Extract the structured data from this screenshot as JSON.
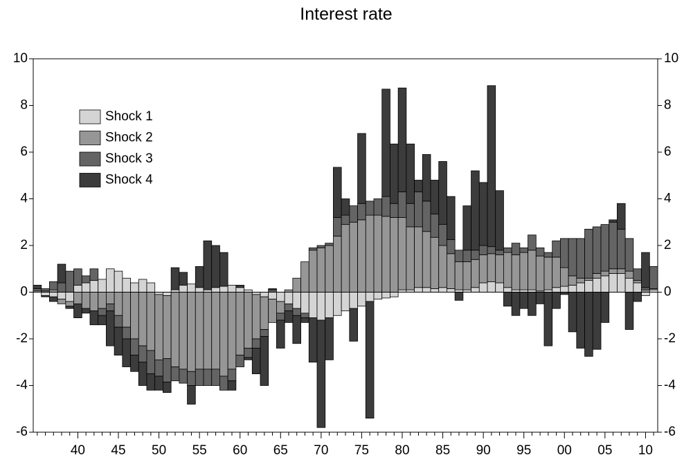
{
  "chart_data": {
    "type": "stacked_bar",
    "title": "Interest rate",
    "categories": [
      null,
      null,
      null,
      null,
      null,
      "40",
      null,
      null,
      null,
      null,
      "45",
      null,
      null,
      null,
      null,
      "50",
      null,
      null,
      null,
      null,
      "55",
      null,
      null,
      null,
      null,
      "60",
      null,
      null,
      null,
      null,
      "65",
      null,
      null,
      null,
      null,
      "70",
      null,
      null,
      null,
      null,
      "75",
      null,
      null,
      null,
      null,
      "80",
      null,
      null,
      null,
      null,
      "85",
      null,
      null,
      null,
      null,
      "90",
      null,
      null,
      null,
      null,
      "95",
      null,
      null,
      null,
      null,
      "00",
      null,
      null,
      null,
      null,
      "05",
      null,
      null,
      null,
      null,
      "10",
      null
    ],
    "series": [
      {
        "name": "Shock 1",
        "color": "#d4d4d4",
        "values": [
          0.05,
          -0.15,
          -0.2,
          -0.3,
          -0.4,
          0.3,
          0.4,
          0.5,
          0.55,
          1.0,
          0.9,
          0.6,
          0.4,
          0.55,
          0.4,
          -0.1,
          -0.15,
          0.1,
          0.3,
          0.35,
          0.2,
          0.1,
          0.2,
          0.25,
          0.3,
          0.2,
          0.1,
          -0.1,
          -0.2,
          -0.3,
          -0.4,
          -0.5,
          -0.7,
          -0.9,
          -1.1,
          -1.2,
          -1.1,
          -1.0,
          -0.8,
          -0.7,
          -0.6,
          -0.4,
          -0.3,
          -0.25,
          -0.2,
          0.1,
          0.1,
          0.2,
          0.2,
          0.15,
          0.2,
          0.15,
          0.1,
          0.1,
          0.2,
          0.4,
          0.45,
          0.4,
          0.2,
          0.1,
          0.1,
          0.1,
          0.05,
          0.1,
          0.2,
          0.25,
          0.3,
          0.4,
          0.5,
          0.6,
          0.7,
          0.8,
          0.8,
          0.6,
          0.4,
          -0.15,
          0.1
        ]
      },
      {
        "name": "Shock 2",
        "color": "#969696",
        "values": [
          0,
          0.05,
          0.1,
          -0.2,
          -0.2,
          -0.5,
          -0.7,
          -0.8,
          -0.7,
          -0.5,
          -1.0,
          -1.5,
          -2.0,
          -2.3,
          -2.5,
          -2.8,
          -2.7,
          -3.2,
          -3.3,
          -3.4,
          -3.3,
          -3.3,
          -3.3,
          -3.6,
          -3.3,
          -2.7,
          -2.4,
          -1.9,
          -1.4,
          -1.0,
          -0.5,
          0.1,
          0.6,
          1.3,
          1.8,
          1.9,
          2.0,
          2.4,
          2.9,
          3.0,
          3.1,
          3.3,
          3.3,
          3.25,
          3.2,
          3.1,
          2.7,
          2.6,
          2.4,
          2.2,
          1.8,
          1.5,
          1.2,
          1.2,
          1.2,
          1.2,
          1.2,
          1.2,
          1.5,
          1.5,
          1.6,
          1.7,
          1.5,
          1.4,
          1.3,
          0.8,
          0.4,
          0.2,
          0.1,
          0.2,
          0.2,
          0.2,
          0.2,
          0.3,
          0.1,
          0.1,
          0.05
        ]
      },
      {
        "name": "Shock 3",
        "color": "#646464",
        "values": [
          0.1,
          0.1,
          0.35,
          0.4,
          0.9,
          0.7,
          0.3,
          0.5,
          -0.3,
          -0.3,
          -0.5,
          -0.5,
          -0.7,
          -0.7,
          -1.0,
          -0.7,
          -1.0,
          -0.6,
          -0.6,
          -0.6,
          -0.7,
          -0.7,
          -0.7,
          -0.6,
          -0.5,
          -0.5,
          -0.4,
          -0.4,
          -0.3,
          0.1,
          -0.3,
          -0.3,
          -0.3,
          -0.2,
          0.1,
          0.1,
          0.1,
          0.8,
          0.4,
          0.7,
          0.7,
          0.6,
          0.7,
          0.85,
          0.6,
          1.1,
          1.0,
          1.5,
          1.3,
          1.0,
          0.9,
          0.6,
          0.5,
          0.5,
          0.4,
          0.4,
          0.3,
          0.2,
          0.2,
          0.5,
          0.2,
          0.65,
          0.35,
          0.2,
          0.7,
          1.25,
          1.6,
          1.7,
          2.1,
          2.0,
          2.0,
          2.0,
          1.7,
          1.4,
          0.5,
          0.1,
          0.95
        ]
      },
      {
        "name": "Shock 4",
        "color": "#3c3c3c",
        "values": [
          0.15,
          -0.05,
          -0.2,
          0.8,
          -0.1,
          -0.6,
          -0.2,
          -0.6,
          -0.4,
          -1.5,
          -1.2,
          -1.2,
          -0.7,
          -1.0,
          -0.7,
          -0.6,
          -0.45,
          0.95,
          0.55,
          -0.8,
          0.9,
          2.1,
          1.8,
          1.45,
          -0.4,
          0.1,
          -0.1,
          -1.1,
          -2.1,
          0.05,
          -1.2,
          -0.5,
          -1.2,
          -0.2,
          -1.9,
          -4.6,
          -1.8,
          2.15,
          0.7,
          -1.4,
          3.0,
          -5.0,
          0.0,
          4.6,
          2.55,
          4.45,
          2.55,
          0.5,
          2.0,
          1.45,
          2.7,
          1.85,
          -0.35,
          1.9,
          3.4,
          2.7,
          6.9,
          2.55,
          -0.6,
          -1.0,
          -0.7,
          -1.0,
          -0.5,
          -2.3,
          -0.7,
          -0.1,
          -1.7,
          -2.4,
          -2.75,
          -2.45,
          -1.3,
          0.1,
          1.1,
          -1.6,
          -0.4,
          1.5,
          0.0
        ]
      }
    ],
    "ylim": [
      -6,
      10
    ],
    "yticks": [
      -6,
      -4,
      -2,
      0,
      2,
      4,
      6,
      8,
      10
    ],
    "grid": false,
    "legend": "upper-left"
  }
}
